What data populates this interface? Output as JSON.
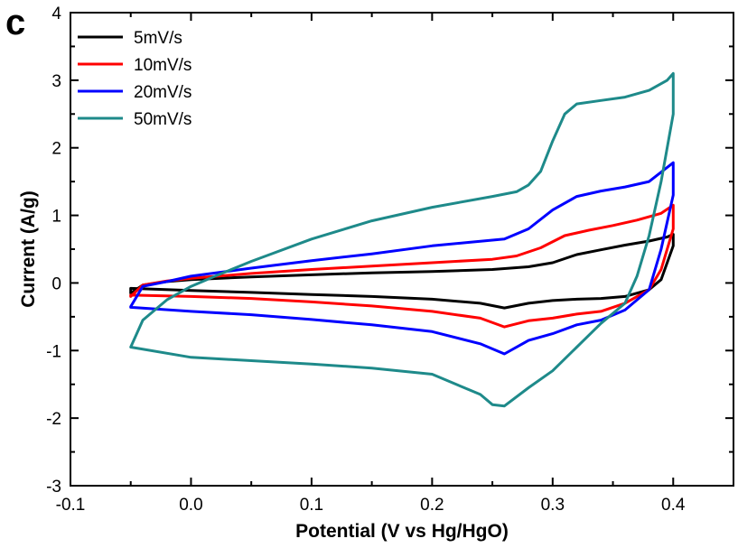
{
  "chart_data": {
    "type": "line",
    "panel_label": "c",
    "xlabel": "Potential (V vs Hg/HgO)",
    "ylabel": "Current  (A/g)",
    "xlim": [
      -0.1,
      0.45
    ],
    "ylim": [
      -3,
      4
    ],
    "x_ticks": [
      -0.1,
      0.0,
      0.1,
      0.2,
      0.3,
      0.4
    ],
    "x_tick_labels": [
      "-0.1",
      "0.0",
      "0.1",
      "0.2",
      "0.3",
      "0.4"
    ],
    "y_ticks": [
      -3,
      -2,
      -1,
      0,
      1,
      2,
      3,
      4
    ],
    "y_tick_labels": [
      "-3",
      "-2",
      "-1",
      "0",
      "1",
      "2",
      "3",
      "4"
    ],
    "grid": false,
    "legend_position": "top-left",
    "series": [
      {
        "name": "5mV/s",
        "color": "#000000",
        "points": [
          [
            -0.05,
            -0.15
          ],
          [
            -0.04,
            -0.03
          ],
          [
            -0.02,
            0.02
          ],
          [
            0.0,
            0.05
          ],
          [
            0.05,
            0.09
          ],
          [
            0.1,
            0.12
          ],
          [
            0.15,
            0.15
          ],
          [
            0.2,
            0.17
          ],
          [
            0.25,
            0.2
          ],
          [
            0.28,
            0.24
          ],
          [
            0.3,
            0.3
          ],
          [
            0.32,
            0.42
          ],
          [
            0.34,
            0.49
          ],
          [
            0.36,
            0.56
          ],
          [
            0.38,
            0.62
          ],
          [
            0.395,
            0.68
          ],
          [
            0.4,
            0.72
          ],
          [
            0.4,
            0.55
          ],
          [
            0.39,
            0.05
          ],
          [
            0.38,
            -0.1
          ],
          [
            0.36,
            -0.2
          ],
          [
            0.34,
            -0.23
          ],
          [
            0.32,
            -0.24
          ],
          [
            0.3,
            -0.26
          ],
          [
            0.28,
            -0.3
          ],
          [
            0.26,
            -0.37
          ],
          [
            0.24,
            -0.3
          ],
          [
            0.2,
            -0.24
          ],
          [
            0.15,
            -0.2
          ],
          [
            0.1,
            -0.17
          ],
          [
            0.05,
            -0.14
          ],
          [
            0.0,
            -0.11
          ],
          [
            -0.05,
            -0.08
          ]
        ]
      },
      {
        "name": "10mV/s",
        "color": "#ff0000",
        "points": [
          [
            -0.05,
            -0.2
          ],
          [
            -0.04,
            -0.03
          ],
          [
            -0.02,
            0.03
          ],
          [
            0.0,
            0.07
          ],
          [
            0.05,
            0.14
          ],
          [
            0.1,
            0.2
          ],
          [
            0.15,
            0.25
          ],
          [
            0.2,
            0.3
          ],
          [
            0.25,
            0.35
          ],
          [
            0.27,
            0.4
          ],
          [
            0.29,
            0.52
          ],
          [
            0.31,
            0.7
          ],
          [
            0.33,
            0.78
          ],
          [
            0.35,
            0.85
          ],
          [
            0.37,
            0.93
          ],
          [
            0.39,
            1.03
          ],
          [
            0.4,
            1.15
          ],
          [
            0.4,
            0.8
          ],
          [
            0.39,
            0.2
          ],
          [
            0.38,
            -0.1
          ],
          [
            0.36,
            -0.3
          ],
          [
            0.34,
            -0.42
          ],
          [
            0.32,
            -0.46
          ],
          [
            0.3,
            -0.52
          ],
          [
            0.28,
            -0.56
          ],
          [
            0.26,
            -0.65
          ],
          [
            0.24,
            -0.52
          ],
          [
            0.2,
            -0.42
          ],
          [
            0.15,
            -0.34
          ],
          [
            0.1,
            -0.28
          ],
          [
            0.05,
            -0.23
          ],
          [
            0.0,
            -0.2
          ],
          [
            -0.05,
            -0.18
          ]
        ]
      },
      {
        "name": "20mV/s",
        "color": "#0000ff",
        "points": [
          [
            -0.05,
            -0.35
          ],
          [
            -0.04,
            -0.05
          ],
          [
            -0.02,
            0.02
          ],
          [
            0.0,
            0.1
          ],
          [
            0.05,
            0.22
          ],
          [
            0.1,
            0.33
          ],
          [
            0.15,
            0.43
          ],
          [
            0.2,
            0.55
          ],
          [
            0.23,
            0.6
          ],
          [
            0.26,
            0.65
          ],
          [
            0.28,
            0.8
          ],
          [
            0.3,
            1.08
          ],
          [
            0.32,
            1.28
          ],
          [
            0.34,
            1.36
          ],
          [
            0.36,
            1.42
          ],
          [
            0.38,
            1.5
          ],
          [
            0.4,
            1.78
          ],
          [
            0.4,
            1.3
          ],
          [
            0.39,
            0.5
          ],
          [
            0.38,
            -0.1
          ],
          [
            0.36,
            -0.4
          ],
          [
            0.34,
            -0.55
          ],
          [
            0.32,
            -0.62
          ],
          [
            0.3,
            -0.75
          ],
          [
            0.28,
            -0.85
          ],
          [
            0.26,
            -1.05
          ],
          [
            0.24,
            -0.9
          ],
          [
            0.2,
            -0.72
          ],
          [
            0.15,
            -0.62
          ],
          [
            0.1,
            -0.54
          ],
          [
            0.05,
            -0.47
          ],
          [
            0.0,
            -0.42
          ],
          [
            -0.05,
            -0.36
          ]
        ]
      },
      {
        "name": "50mV/s",
        "color": "#1e8a8a",
        "points": [
          [
            -0.05,
            -0.95
          ],
          [
            -0.04,
            -0.55
          ],
          [
            -0.02,
            -0.25
          ],
          [
            0.0,
            -0.05
          ],
          [
            0.02,
            0.1
          ],
          [
            0.05,
            0.32
          ],
          [
            0.1,
            0.65
          ],
          [
            0.15,
            0.92
          ],
          [
            0.2,
            1.12
          ],
          [
            0.25,
            1.28
          ],
          [
            0.27,
            1.35
          ],
          [
            0.28,
            1.45
          ],
          [
            0.29,
            1.65
          ],
          [
            0.3,
            2.1
          ],
          [
            0.31,
            2.5
          ],
          [
            0.32,
            2.65
          ],
          [
            0.34,
            2.7
          ],
          [
            0.36,
            2.75
          ],
          [
            0.38,
            2.85
          ],
          [
            0.395,
            3.0
          ],
          [
            0.4,
            3.1
          ],
          [
            0.4,
            2.5
          ],
          [
            0.39,
            1.5
          ],
          [
            0.38,
            0.7
          ],
          [
            0.37,
            0.1
          ],
          [
            0.36,
            -0.3
          ],
          [
            0.34,
            -0.6
          ],
          [
            0.32,
            -0.95
          ],
          [
            0.3,
            -1.3
          ],
          [
            0.28,
            -1.55
          ],
          [
            0.26,
            -1.82
          ],
          [
            0.25,
            -1.8
          ],
          [
            0.24,
            -1.65
          ],
          [
            0.2,
            -1.35
          ],
          [
            0.15,
            -1.26
          ],
          [
            0.1,
            -1.2
          ],
          [
            0.05,
            -1.15
          ],
          [
            0.0,
            -1.1
          ],
          [
            -0.05,
            -0.95
          ]
        ]
      }
    ]
  }
}
